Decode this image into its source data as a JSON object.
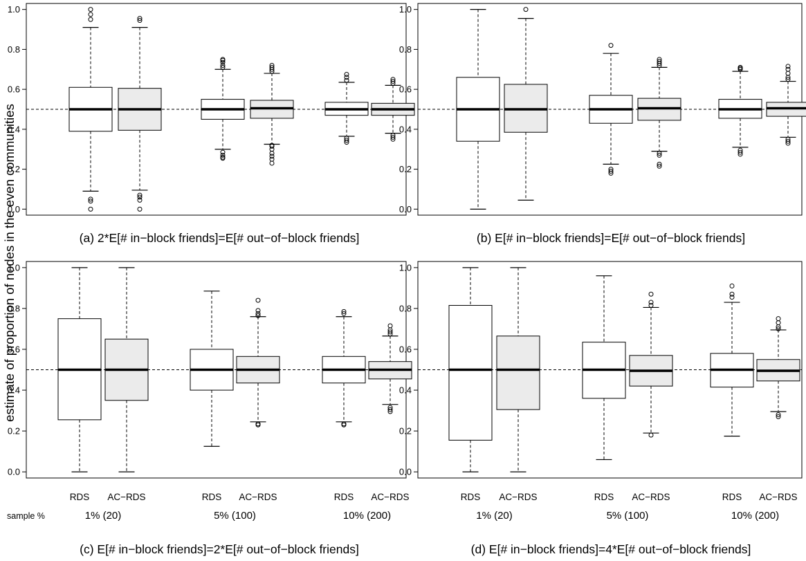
{
  "figure": {
    "ylabel": "estimate of proportion of nodes in the even communities",
    "sample_label": "sample %",
    "colors": {
      "rds_fill": "#ffffff",
      "acrds_fill": "#ebebeb",
      "stroke": "#000000"
    }
  },
  "chart_data": [
    {
      "type": "box",
      "caption": "(a) 2*E[# in−block friends]=E[# out−of−block friends]",
      "ylim": [
        -0.03,
        1.03
      ],
      "yticks": [
        "0.0",
        "0.2",
        "0.4",
        "0.6",
        "0.8",
        "1.0"
      ],
      "reference_line": 0.5,
      "groups": [
        {
          "label": "1% (20)",
          "boxes": [
            {
              "method": "RDS",
              "whisker_low": 0.09,
              "q1": 0.39,
              "median": 0.5,
              "q3": 0.61,
              "whisker_high": 0.91,
              "outliers": [
                0.0,
                0.04,
                0.05,
                0.95,
                0.975,
                1.0
              ]
            },
            {
              "method": "AC−RDS",
              "whisker_low": 0.095,
              "q1": 0.395,
              "median": 0.5,
              "q3": 0.605,
              "whisker_high": 0.91,
              "outliers": [
                0.0,
                0.045,
                0.06,
                0.07,
                0.945,
                0.955
              ]
            }
          ]
        },
        {
          "label": "5% (100)",
          "boxes": [
            {
              "method": "RDS",
              "whisker_low": 0.3,
              "q1": 0.45,
              "median": 0.5,
              "q3": 0.55,
              "whisker_high": 0.7,
              "outliers": [
                0.255,
                0.26,
                0.27,
                0.285,
                0.71,
                0.72,
                0.735,
                0.745,
                0.75
              ]
            },
            {
              "method": "AC−RDS",
              "whisker_low": 0.325,
              "q1": 0.455,
              "median": 0.505,
              "q3": 0.545,
              "whisker_high": 0.68,
              "outliers": [
                0.23,
                0.25,
                0.265,
                0.28,
                0.3,
                0.315,
                0.32,
                0.69,
                0.7,
                0.71,
                0.72
              ]
            }
          ]
        },
        {
          "label": "10% (200)",
          "boxes": [
            {
              "method": "RDS",
              "whisker_low": 0.365,
              "q1": 0.47,
              "median": 0.5,
              "q3": 0.535,
              "whisker_high": 0.635,
              "outliers": [
                0.335,
                0.345,
                0.355,
                0.645,
                0.66,
                0.675
              ]
            },
            {
              "method": "AC−RDS",
              "whisker_low": 0.38,
              "q1": 0.47,
              "median": 0.5,
              "q3": 0.53,
              "whisker_high": 0.62,
              "outliers": [
                0.35,
                0.36,
                0.37,
                0.63,
                0.64,
                0.65
              ]
            }
          ]
        }
      ]
    },
    {
      "type": "box",
      "caption": "(b) E[# in−block friends]=E[# out−of−block friends]",
      "ylim": [
        -0.03,
        1.03
      ],
      "yticks": [
        "0.0",
        "0.2",
        "0.4",
        "0.6",
        "0.8",
        "1.0"
      ],
      "reference_line": 0.5,
      "groups": [
        {
          "label": "1% (20)",
          "boxes": [
            {
              "method": "RDS",
              "whisker_low": 0.0,
              "q1": 0.34,
              "median": 0.5,
              "q3": 0.66,
              "whisker_high": 1.0,
              "outliers": []
            },
            {
              "method": "AC−RDS",
              "whisker_low": 0.045,
              "q1": 0.385,
              "median": 0.5,
              "q3": 0.625,
              "whisker_high": 0.955,
              "outliers": [
                1.0
              ]
            }
          ]
        },
        {
          "label": "5% (100)",
          "boxes": [
            {
              "method": "RDS",
              "whisker_low": 0.225,
              "q1": 0.43,
              "median": 0.5,
              "q3": 0.57,
              "whisker_high": 0.78,
              "outliers": [
                0.18,
                0.19,
                0.2,
                0.82
              ]
            },
            {
              "method": "AC−RDS",
              "whisker_low": 0.29,
              "q1": 0.445,
              "median": 0.505,
              "q3": 0.555,
              "whisker_high": 0.71,
              "outliers": [
                0.215,
                0.225,
                0.27,
                0.28,
                0.72,
                0.73,
                0.74,
                0.75
              ]
            }
          ]
        },
        {
          "label": "10% (200)",
          "boxes": [
            {
              "method": "RDS",
              "whisker_low": 0.31,
              "q1": 0.455,
              "median": 0.5,
              "q3": 0.55,
              "whisker_high": 0.69,
              "outliers": [
                0.275,
                0.285,
                0.295,
                0.7,
                0.705,
                0.71
              ]
            },
            {
              "method": "AC−RDS",
              "whisker_low": 0.36,
              "q1": 0.465,
              "median": 0.505,
              "q3": 0.535,
              "whisker_high": 0.64,
              "outliers": [
                0.33,
                0.34,
                0.35,
                0.65,
                0.66,
                0.68,
                0.7,
                0.715
              ]
            }
          ]
        }
      ]
    },
    {
      "type": "box",
      "caption": "(c) E[# in−block friends]=2*E[# out−of−block friends]",
      "ylim": [
        -0.03,
        1.03
      ],
      "yticks": [
        "0.0",
        "0.2",
        "0.4",
        "0.6",
        "0.8",
        "1.0"
      ],
      "reference_line": 0.5,
      "groups": [
        {
          "label": "1% (20)",
          "boxes": [
            {
              "method": "RDS",
              "whisker_low": 0.0,
              "q1": 0.255,
              "median": 0.5,
              "q3": 0.75,
              "whisker_high": 1.0,
              "outliers": []
            },
            {
              "method": "AC−RDS",
              "whisker_low": 0.0,
              "q1": 0.35,
              "median": 0.5,
              "q3": 0.65,
              "whisker_high": 1.0,
              "outliers": []
            }
          ]
        },
        {
          "label": "5% (100)",
          "boxes": [
            {
              "method": "RDS",
              "whisker_low": 0.125,
              "q1": 0.4,
              "median": 0.5,
              "q3": 0.6,
              "whisker_high": 0.885,
              "outliers": []
            },
            {
              "method": "AC−RDS",
              "whisker_low": 0.245,
              "q1": 0.435,
              "median": 0.5,
              "q3": 0.565,
              "whisker_high": 0.76,
              "outliers": [
                0.23,
                0.235,
                0.765,
                0.775,
                0.79,
                0.84
              ]
            }
          ]
        },
        {
          "label": "10% (200)",
          "boxes": [
            {
              "method": "RDS",
              "whisker_low": 0.245,
              "q1": 0.435,
              "median": 0.5,
              "q3": 0.565,
              "whisker_high": 0.76,
              "outliers": [
                0.23,
                0.235,
                0.775,
                0.785
              ]
            },
            {
              "method": "AC−RDS",
              "whisker_low": 0.33,
              "q1": 0.455,
              "median": 0.5,
              "q3": 0.54,
              "whisker_high": 0.665,
              "outliers": [
                0.295,
                0.305,
                0.315,
                0.675,
                0.685,
                0.695,
                0.715
              ]
            }
          ]
        }
      ]
    },
    {
      "type": "box",
      "caption": "(d) E[# in−block friends]=4*E[# out−of−block friends]",
      "ylim": [
        -0.03,
        1.03
      ],
      "yticks": [
        "0.0",
        "0.2",
        "0.4",
        "0.6",
        "0.8",
        "1.0"
      ],
      "reference_line": 0.5,
      "groups": [
        {
          "label": "1% (20)",
          "boxes": [
            {
              "method": "RDS",
              "whisker_low": 0.0,
              "q1": 0.155,
              "median": 0.5,
              "q3": 0.815,
              "whisker_high": 1.0,
              "outliers": []
            },
            {
              "method": "AC−RDS",
              "whisker_low": 0.0,
              "q1": 0.305,
              "median": 0.5,
              "q3": 0.665,
              "whisker_high": 1.0,
              "outliers": []
            }
          ]
        },
        {
          "label": "5% (100)",
          "boxes": [
            {
              "method": "RDS",
              "whisker_low": 0.06,
              "q1": 0.36,
              "median": 0.5,
              "q3": 0.635,
              "whisker_high": 0.96,
              "outliers": []
            },
            {
              "method": "AC−RDS",
              "whisker_low": 0.19,
              "q1": 0.42,
              "median": 0.495,
              "q3": 0.57,
              "whisker_high": 0.805,
              "outliers": [
                0.18,
                0.815,
                0.83,
                0.87
              ]
            }
          ]
        },
        {
          "label": "10% (200)",
          "boxes": [
            {
              "method": "RDS",
              "whisker_low": 0.175,
              "q1": 0.415,
              "median": 0.5,
              "q3": 0.58,
              "whisker_high": 0.83,
              "outliers": [
                0.855,
                0.87,
                0.91
              ]
            },
            {
              "method": "AC−RDS",
              "whisker_low": 0.295,
              "q1": 0.445,
              "median": 0.495,
              "q3": 0.55,
              "whisker_high": 0.695,
              "outliers": [
                0.27,
                0.28,
                0.7,
                0.71,
                0.73,
                0.75
              ]
            }
          ]
        }
      ]
    }
  ]
}
